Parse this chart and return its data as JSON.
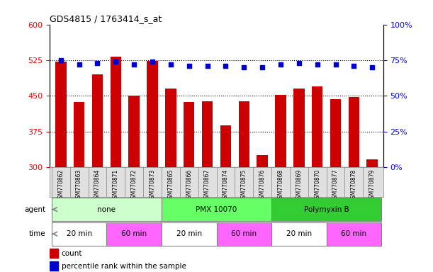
{
  "title": "GDS4815 / 1763414_s_at",
  "samples": [
    "GSM770862",
    "GSM770863",
    "GSM770864",
    "GSM770871",
    "GSM770872",
    "GSM770873",
    "GSM770865",
    "GSM770866",
    "GSM770867",
    "GSM770874",
    "GSM770875",
    "GSM770876",
    "GSM770868",
    "GSM770869",
    "GSM770870",
    "GSM770877",
    "GSM770878",
    "GSM770879"
  ],
  "counts": [
    522,
    437,
    495,
    533,
    451,
    524,
    466,
    437,
    438,
    388,
    438,
    325,
    452,
    465,
    470,
    443,
    447,
    317
  ],
  "percentile": [
    75,
    72,
    73,
    74,
    72,
    74,
    72,
    71,
    71,
    71,
    70,
    70,
    72,
    73,
    72,
    72,
    71,
    70
  ],
  "bar_color": "#cc0000",
  "dot_color": "#0000cc",
  "ylim_left": [
    300,
    600
  ],
  "ylim_right": [
    0,
    100
  ],
  "yticks_left": [
    300,
    375,
    450,
    525,
    600
  ],
  "yticks_right": [
    0,
    25,
    50,
    75,
    100
  ],
  "agent_groups": [
    {
      "label": "none",
      "start": 0,
      "end": 6,
      "color": "#ccffcc"
    },
    {
      "label": "PMX 10070",
      "start": 6,
      "end": 12,
      "color": "#66ff66"
    },
    {
      "label": "Polymyxin B",
      "start": 12,
      "end": 18,
      "color": "#33cc33"
    }
  ],
  "time_groups": [
    {
      "label": "20 min",
      "start": 0,
      "end": 3,
      "color": "#ffffff"
    },
    {
      "label": "60 min",
      "start": 3,
      "end": 6,
      "color": "#ff66ff"
    },
    {
      "label": "20 min",
      "start": 6,
      "end": 9,
      "color": "#ffffff"
    },
    {
      "label": "60 min",
      "start": 9,
      "end": 12,
      "color": "#ff66ff"
    },
    {
      "label": "20 min",
      "start": 12,
      "end": 15,
      "color": "#ffffff"
    },
    {
      "label": "60 min",
      "start": 15,
      "end": 18,
      "color": "#ff66ff"
    }
  ],
  "agent_label": "agent",
  "time_label": "time",
  "legend_count": "count",
  "legend_percentile": "percentile rank within the sample",
  "background_color": "#ffffff",
  "grid_color": "#888888",
  "xticklabel_bg": "#e0e0e0"
}
